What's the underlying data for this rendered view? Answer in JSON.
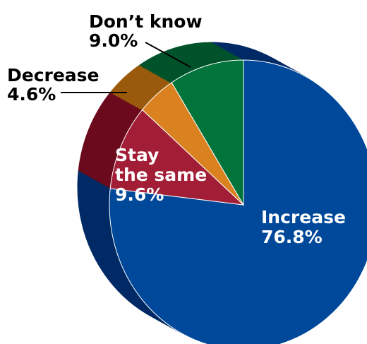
{
  "chart_data": {
    "type": "pie",
    "slices": [
      {
        "name": "Increase",
        "value": 76.8,
        "value_label": "76.8%",
        "color": "#00489a",
        "side_color": "#002a66"
      },
      {
        "name": "Stay the same",
        "value": 9.6,
        "value_label": "9.6%",
        "color": "#a21d36",
        "side_color": "#6b0a1c"
      },
      {
        "name": "Decrease",
        "value": 4.6,
        "value_label": "4.6%",
        "color": "#d9821f",
        "side_color": "#9a5a0c"
      },
      {
        "name": "Don’t know",
        "value": 9.0,
        "value_label": "9.0%",
        "color": "#00743a",
        "side_color": "#00522a"
      }
    ],
    "label_lines": {
      "increase_line1": "Increase",
      "increase_line2": "76.8%",
      "stay_line1": "Stay",
      "stay_line2": "the same",
      "stay_line3": "9.6%",
      "decrease_line1": "Decrease",
      "decrease_line2": "4.6%",
      "dontknow_line1": "Don’t know",
      "dontknow_line2": "9.0%"
    },
    "title": "",
    "style": "3d-exploded-pie"
  }
}
